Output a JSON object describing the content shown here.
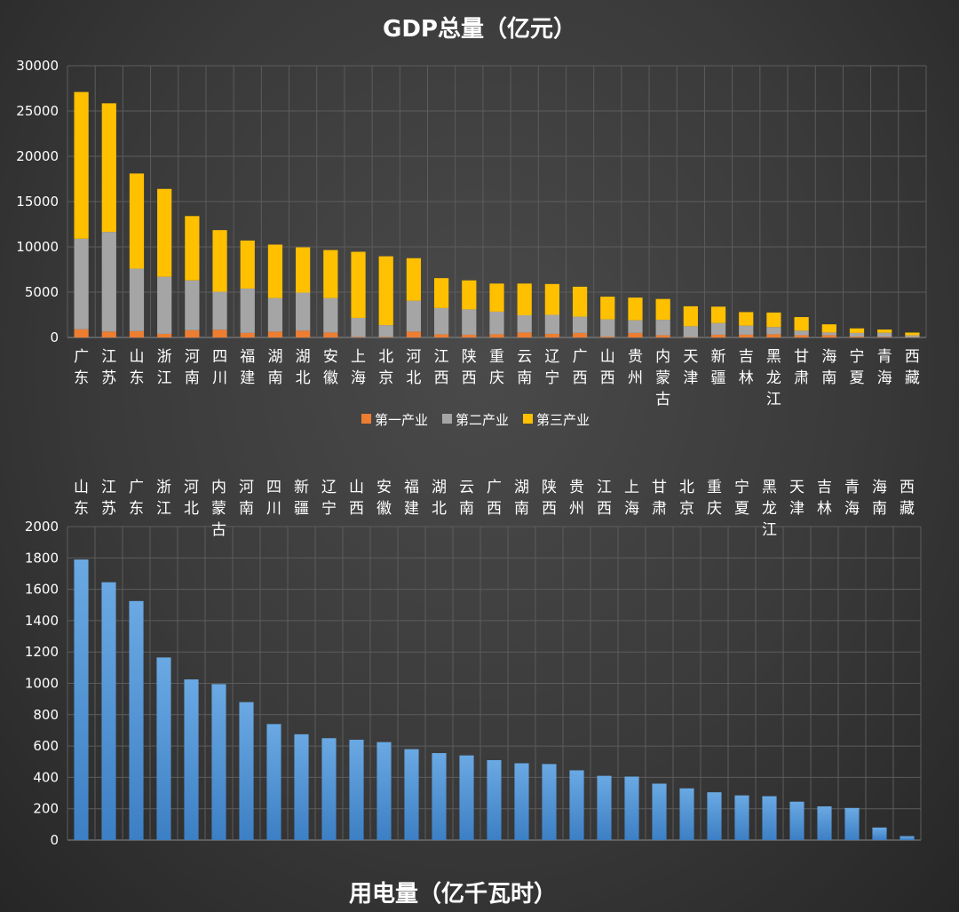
{
  "chart_data": [
    {
      "type": "bar",
      "stacked": true,
      "title": "GDP总量（亿元）",
      "categories": [
        "广东",
        "江苏",
        "山东",
        "浙江",
        "河南",
        "四川",
        "福建",
        "湖南",
        "湖北",
        "安徽",
        "上海",
        "北京",
        "河北",
        "江西",
        "陕西",
        "重庆",
        "云南",
        "辽宁",
        "广西",
        "山西",
        "贵州",
        "内蒙古",
        "天津",
        "新疆",
        "吉林",
        "黑龙江",
        "甘肃",
        "海南",
        "宁夏",
        "青海",
        "西藏"
      ],
      "series": [
        {
          "name": "第一产业",
          "color": "#ed7d31",
          "values": [
            900,
            650,
            700,
            400,
            800,
            850,
            500,
            650,
            750,
            550,
            60,
            60,
            650,
            350,
            300,
            350,
            550,
            400,
            500,
            100,
            500,
            250,
            40,
            300,
            300,
            350,
            250,
            250,
            100,
            70,
            40
          ]
        },
        {
          "name": "第二产业",
          "color": "#a5a5a5",
          "values": [
            10000,
            11000,
            6900,
            6300,
            5500,
            4200,
            4900,
            3700,
            4200,
            3800,
            2100,
            1300,
            3400,
            2900,
            2800,
            2500,
            1900,
            2100,
            1800,
            1900,
            1400,
            1700,
            1200,
            1300,
            1000,
            800,
            500,
            300,
            400,
            450,
            200
          ]
        },
        {
          "name": "第三产业",
          "color": "#ffc000",
          "values": [
            16200,
            14200,
            10500,
            9700,
            7100,
            6800,
            5300,
            5900,
            5000,
            5300,
            7300,
            7600,
            4700,
            3300,
            3200,
            3100,
            3500,
            3400,
            3300,
            2500,
            2500,
            2300,
            2200,
            1800,
            1500,
            1600,
            1500,
            900,
            500,
            350,
            300
          ]
        }
      ],
      "ylim": [
        0,
        30000
      ],
      "yticks": [
        0,
        5000,
        10000,
        15000,
        20000,
        25000,
        30000
      ],
      "legend": "bottom",
      "grid": true
    },
    {
      "type": "bar",
      "title": "用电量（亿千瓦时）",
      "categories": [
        "山东",
        "江苏",
        "广东",
        "浙江",
        "河北",
        "内蒙古",
        "河南",
        "四川",
        "新疆",
        "辽宁",
        "山西",
        "安徽",
        "福建",
        "湖北",
        "云南",
        "广西",
        "湖南",
        "陕西",
        "贵州",
        "江西",
        "上海",
        "甘肃",
        "北京",
        "重庆",
        "宁夏",
        "黑龙江",
        "天津",
        "吉林",
        "青海",
        "海南",
        "西藏"
      ],
      "values": [
        1790,
        1645,
        1525,
        1165,
        1025,
        995,
        880,
        740,
        675,
        650,
        640,
        625,
        580,
        555,
        540,
        510,
        490,
        485,
        445,
        410,
        405,
        360,
        330,
        305,
        285,
        280,
        245,
        215,
        205,
        80,
        25
      ],
      "color": "#5b9bd5",
      "ylim": [
        0,
        2000
      ],
      "yticks": [
        0,
        200,
        400,
        600,
        800,
        1000,
        1200,
        1400,
        1600,
        1800,
        2000
      ],
      "legend": "none",
      "grid": true
    }
  ]
}
